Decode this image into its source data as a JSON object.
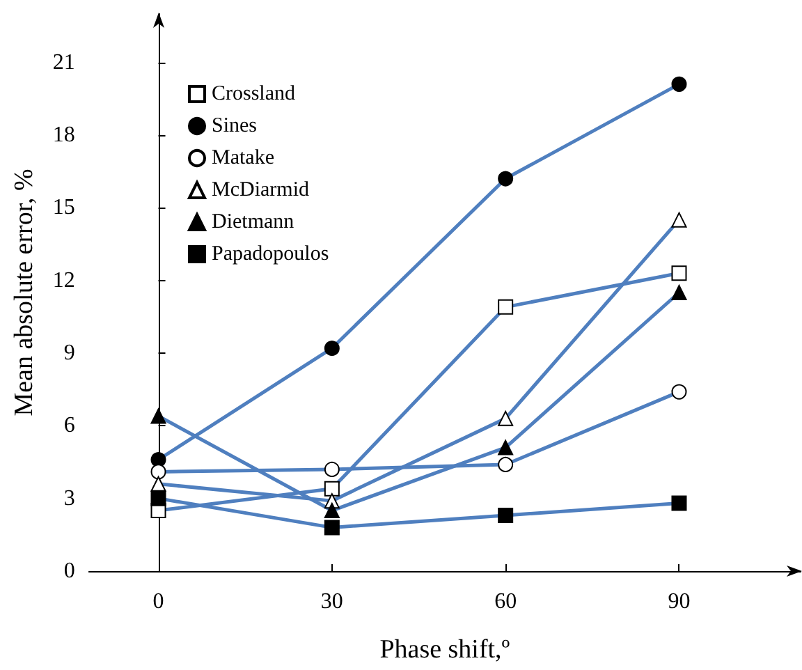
{
  "chart_data": {
    "type": "line",
    "xlabel": "Phase shift,º",
    "ylabel": "Mean absolute error, %",
    "x": [
      0,
      30,
      60,
      90
    ],
    "xlim": [
      -12,
      111
    ],
    "xticks": [
      0,
      30,
      60,
      90
    ],
    "ylim": [
      0,
      23
    ],
    "yticks": [
      0,
      3,
      6,
      9,
      12,
      15,
      18,
      21
    ],
    "legend": "top left",
    "series": [
      {
        "name": "Crossland",
        "color": "#4f7fbf",
        "marker": "square",
        "values": [
          2.5,
          3.4,
          10.9,
          12.3
        ]
      },
      {
        "name": "Sines",
        "color": "#4f7fbf",
        "marker": "circle",
        "values": [
          4.6,
          9.2,
          16.2,
          20.1
        ]
      },
      {
        "name": "Matake",
        "color": "#4f7fbf",
        "marker": "circle",
        "values": [
          4.1,
          4.2,
          4.4,
          7.4
        ]
      },
      {
        "name": "McDiarmid",
        "color": "#4f7fbf",
        "marker": "triangle",
        "values": [
          3.6,
          2.9,
          6.3,
          14.5
        ]
      },
      {
        "name": "Dietmann",
        "color": "#4f7fbf",
        "marker": "triangle",
        "values": [
          6.4,
          2.5,
          5.1,
          11.5
        ]
      },
      {
        "name": "Papadopoulos",
        "color": "#4f7fbf",
        "marker": "square",
        "values": [
          3.0,
          1.8,
          2.3,
          2.8
        ]
      }
    ]
  }
}
